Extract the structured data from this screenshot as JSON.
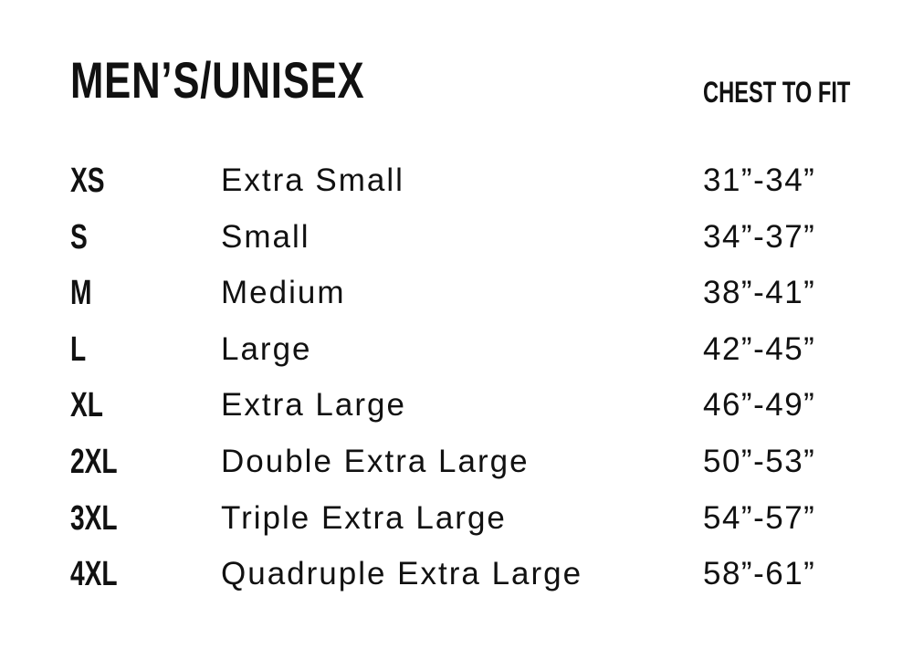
{
  "title": "MEN’S/UNISEX",
  "column_header": "CHEST TO FIT",
  "rows": [
    {
      "code": "XS",
      "name": "Extra Small",
      "range": "31”-34”"
    },
    {
      "code": "S",
      "name": "Small",
      "range": "34”-37”"
    },
    {
      "code": "M",
      "name": "Medium",
      "range": "38”-41”"
    },
    {
      "code": "L",
      "name": "Large",
      "range": "42”-45”"
    },
    {
      "code": "XL",
      "name": "Extra Large",
      "range": "46”-49”"
    },
    {
      "code": "2XL",
      "name": "Double Extra Large",
      "range": "50”-53”"
    },
    {
      "code": "3XL",
      "name": "Triple Extra Large",
      "range": "54”-57”"
    },
    {
      "code": "4XL",
      "name": "Quadruple Extra Large",
      "range": "58”-61”"
    }
  ]
}
